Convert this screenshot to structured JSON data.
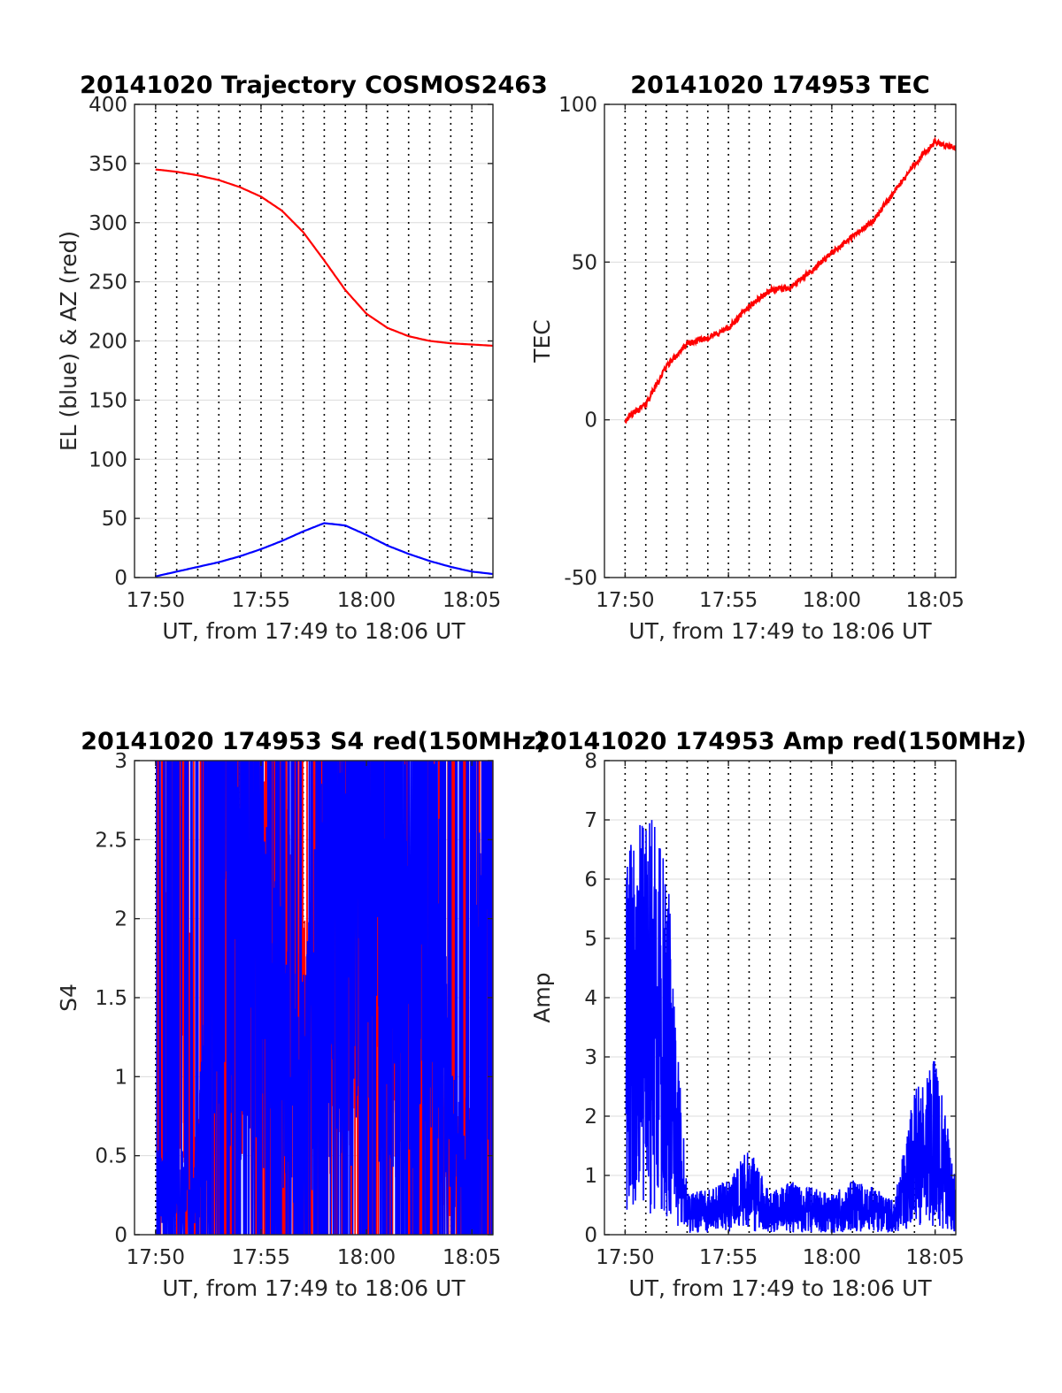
{
  "chart_data": [
    {
      "type": "line",
      "title": "20141020 Trajectory COSMOS2463",
      "xlabel": "UT, from 17:49 to 18:06 UT",
      "ylabel": "EL (blue) & AZ (red)",
      "xlim": [
        "17:49",
        "18:06"
      ],
      "ylim": [
        0,
        400
      ],
      "x_ticks": [
        "17:50",
        "17:55",
        "18:00",
        "18:05"
      ],
      "y_ticks": [
        0,
        50,
        100,
        150,
        200,
        250,
        300,
        350,
        400
      ],
      "grid": true,
      "series": [
        {
          "name": "AZ",
          "color": "#ff0000",
          "x": [
            "17:50",
            "17:51",
            "17:52",
            "17:53",
            "17:54",
            "17:55",
            "17:56",
            "17:57",
            "17:58",
            "17:59",
            "18:00",
            "18:01",
            "18:02",
            "18:03",
            "18:04",
            "18:05",
            "18:06"
          ],
          "values": [
            345,
            343,
            340,
            336,
            330,
            322,
            310,
            292,
            268,
            243,
            223,
            211,
            204,
            200,
            198,
            197,
            196
          ]
        },
        {
          "name": "EL",
          "color": "#0000ff",
          "x": [
            "17:50",
            "17:51",
            "17:52",
            "17:53",
            "17:54",
            "17:55",
            "17:56",
            "17:57",
            "17:58",
            "17:59",
            "18:00",
            "18:01",
            "18:02",
            "18:03",
            "18:04",
            "18:05",
            "18:06"
          ],
          "values": [
            1,
            5,
            9,
            13,
            18,
            24,
            31,
            39,
            46,
            44,
            36,
            27,
            20,
            14,
            9,
            5,
            3
          ]
        }
      ]
    },
    {
      "type": "line",
      "title": "20141020 174953 TEC",
      "xlabel": "UT, from 17:49 to 18:06 UT",
      "ylabel": "TEC",
      "xlim": [
        "17:49",
        "18:06"
      ],
      "ylim": [
        -50,
        100
      ],
      "x_ticks": [
        "17:50",
        "17:55",
        "18:00",
        "18:05"
      ],
      "y_ticks": [
        -50,
        0,
        50,
        100
      ],
      "grid": true,
      "series": [
        {
          "name": "TEC",
          "color": "#ff0000",
          "x": [
            "17:50",
            "17:51",
            "17:52",
            "17:53",
            "17:54",
            "17:55",
            "17:56",
            "17:57",
            "17:58",
            "17:59",
            "18:00",
            "18:01",
            "18:02",
            "18:03",
            "18:04",
            "18:05",
            "18:06"
          ],
          "values": [
            0,
            5,
            17,
            24,
            26,
            29,
            36,
            41,
            42,
            47,
            53,
            58,
            63,
            72,
            81,
            88,
            86
          ]
        }
      ]
    },
    {
      "type": "line",
      "title": "20141020 174953 S4 red(150MHz)",
      "xlabel": "UT, from 17:49 to 18:06 UT",
      "ylabel": "S4",
      "xlim": [
        "17:49",
        "18:06"
      ],
      "ylim": [
        0,
        3
      ],
      "x_ticks": [
        "17:50",
        "17:55",
        "18:00",
        "18:05"
      ],
      "y_ticks": [
        0,
        0.5,
        1,
        1.5,
        2,
        2.5,
        3
      ],
      "grid": true,
      "series": [
        {
          "color": "#ff0000",
          "x": [
            "17:50",
            "17:51",
            "17:52",
            "17:53",
            "17:54",
            "17:55",
            "17:56",
            "17:57",
            "17:58",
            "17:59",
            "18:00",
            "18:01",
            "18:02",
            "18:03",
            "18:04",
            "18:05",
            "18:06"
          ],
          "values": [
            0.25,
            2.4,
            0.3,
            2.6,
            2.3,
            2.1,
            1.9,
            1.1,
            1.3,
            2.0,
            2.6,
            1.5,
            1.2,
            0.9,
            0.5,
            0.5,
            0.3
          ]
        },
        {
          "color": "#0000ff",
          "x": [
            "17:50",
            "17:51",
            "17:52",
            "17:53",
            "17:54",
            "17:55",
            "17:56",
            "17:57",
            "17:58",
            "17:59",
            "18:00",
            "18:01",
            "18:02",
            "18:03",
            "18:04",
            "18:05",
            "18:06"
          ],
          "values": [
            0.3,
            0.3,
            0.3,
            2.6,
            2.3,
            1.8,
            1.1,
            0.9,
            1.8,
            2.0,
            2.6,
            2.1,
            1.9,
            2.4,
            0.6,
            0.6,
            2.9
          ]
        }
      ]
    },
    {
      "type": "line",
      "title": "20141020 174953 Amp red(150MHz)",
      "xlabel": "UT, from 17:49 to 18:06 UT",
      "ylabel": "Amp",
      "xlim": [
        "17:49",
        "18:06"
      ],
      "ylim": [
        0,
        8
      ],
      "x_ticks": [
        "17:50",
        "17:55",
        "18:00",
        "18:05"
      ],
      "y_ticks": [
        0,
        1,
        2,
        3,
        4,
        5,
        6,
        7,
        8
      ],
      "grid": true,
      "series": [
        {
          "color": "#0000ff",
          "x": [
            "17:50",
            "17:51",
            "17:52",
            "17:53",
            "17:54",
            "17:55",
            "17:56",
            "17:57",
            "17:58",
            "17:59",
            "18:00",
            "18:01",
            "18:02",
            "18:03",
            "18:04",
            "18:05",
            "18:06"
          ],
          "values": [
            5.5,
            6.3,
            5.6,
            0.6,
            0.7,
            0.8,
            1.3,
            0.6,
            0.8,
            0.7,
            0.6,
            0.8,
            0.7,
            0.5,
            2.1,
            2.6,
            0.9
          ]
        }
      ]
    }
  ]
}
